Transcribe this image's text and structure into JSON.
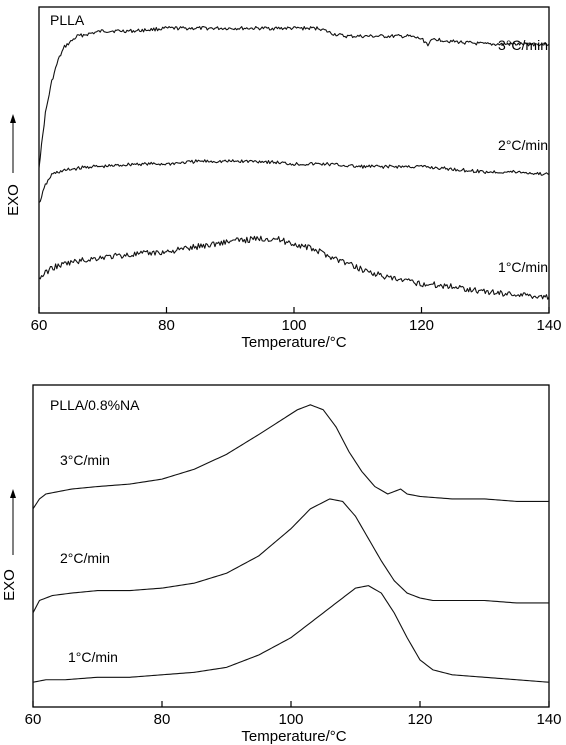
{
  "chart_data": [
    {
      "type": "line",
      "title": "PLLA",
      "xlabel": "Temperature/°C",
      "ylabel": "EXO",
      "xlim": [
        60,
        140
      ],
      "x_ticks": [
        "60",
        "80",
        "100",
        "120",
        "140"
      ],
      "series": [
        {
          "name": "3°C/min",
          "x": [
            60,
            61,
            62,
            63,
            64,
            66,
            68,
            70,
            75,
            80,
            85,
            90,
            95,
            100,
            104,
            106,
            108,
            110,
            115,
            118,
            120,
            121,
            122,
            125,
            130,
            135,
            140
          ],
          "y": [
            0.4,
            0.6,
            0.72,
            0.8,
            0.85,
            0.89,
            0.9,
            0.91,
            0.91,
            0.92,
            0.92,
            0.92,
            0.92,
            0.92,
            0.92,
            0.9,
            0.89,
            0.89,
            0.89,
            0.89,
            0.88,
            0.86,
            0.88,
            0.87,
            0.86,
            0.86,
            0.86
          ]
        },
        {
          "name": "2°C/min",
          "x": [
            60,
            61,
            62,
            63,
            65,
            68,
            70,
            75,
            80,
            85,
            90,
            95,
            100,
            105,
            110,
            115,
            120,
            125,
            130,
            135,
            140
          ],
          "y": [
            0.26,
            0.33,
            0.37,
            0.38,
            0.39,
            0.4,
            0.4,
            0.41,
            0.41,
            0.42,
            0.42,
            0.42,
            0.41,
            0.41,
            0.4,
            0.4,
            0.4,
            0.39,
            0.38,
            0.38,
            0.37
          ]
        },
        {
          "name": "1°C/min",
          "x": [
            60,
            62,
            65,
            70,
            75,
            80,
            85,
            90,
            95,
            97,
            100,
            103,
            106,
            110,
            115,
            120,
            125,
            130,
            135,
            140
          ],
          "y": [
            -0.02,
            0.02,
            0.04,
            0.06,
            0.07,
            0.08,
            0.1,
            0.12,
            0.13,
            0.13,
            0.11,
            0.09,
            0.06,
            0.02,
            -0.02,
            -0.04,
            -0.05,
            -0.07,
            -0.08,
            -0.09
          ]
        }
      ]
    },
    {
      "type": "line",
      "title": "PLLA/0.8%NA",
      "xlabel": "Temperature/°C",
      "ylabel": "EXO",
      "xlim": [
        60,
        140
      ],
      "x_ticks": [
        "60",
        "80",
        "100",
        "120",
        "140"
      ],
      "series": [
        {
          "name": "3°C/min",
          "x": [
            60,
            61,
            62,
            64,
            66,
            70,
            75,
            80,
            85,
            90,
            95,
            98,
            101,
            103,
            105,
            107,
            109,
            111,
            113,
            115,
            116,
            117,
            118,
            120,
            125,
            130,
            135,
            140
          ],
          "y": [
            0.7,
            0.74,
            0.76,
            0.77,
            0.78,
            0.79,
            0.8,
            0.82,
            0.86,
            0.92,
            1.0,
            1.05,
            1.1,
            1.12,
            1.1,
            1.03,
            0.93,
            0.85,
            0.79,
            0.76,
            0.77,
            0.78,
            0.76,
            0.75,
            0.74,
            0.74,
            0.73,
            0.73
          ]
        },
        {
          "name": "2°C/min",
          "x": [
            60,
            61,
            63,
            66,
            70,
            75,
            80,
            85,
            90,
            95,
            100,
            103,
            106,
            108,
            110,
            112,
            114,
            116,
            118,
            120,
            122,
            125,
            130,
            135,
            140
          ],
          "y": [
            0.28,
            0.33,
            0.35,
            0.36,
            0.37,
            0.37,
            0.38,
            0.4,
            0.44,
            0.51,
            0.62,
            0.7,
            0.74,
            0.73,
            0.67,
            0.58,
            0.49,
            0.41,
            0.36,
            0.34,
            0.33,
            0.33,
            0.33,
            0.32,
            0.32
          ]
        },
        {
          "name": "1°C/min",
          "x": [
            60,
            62,
            65,
            70,
            75,
            80,
            85,
            90,
            95,
            100,
            104,
            108,
            110,
            112,
            114,
            116,
            118,
            120,
            122,
            125,
            130,
            135,
            140
          ],
          "y": [
            0.0,
            0.01,
            0.01,
            0.02,
            0.02,
            0.03,
            0.04,
            0.06,
            0.11,
            0.18,
            0.26,
            0.34,
            0.38,
            0.39,
            0.36,
            0.28,
            0.18,
            0.09,
            0.05,
            0.03,
            0.02,
            0.01,
            0.0
          ]
        }
      ]
    }
  ]
}
